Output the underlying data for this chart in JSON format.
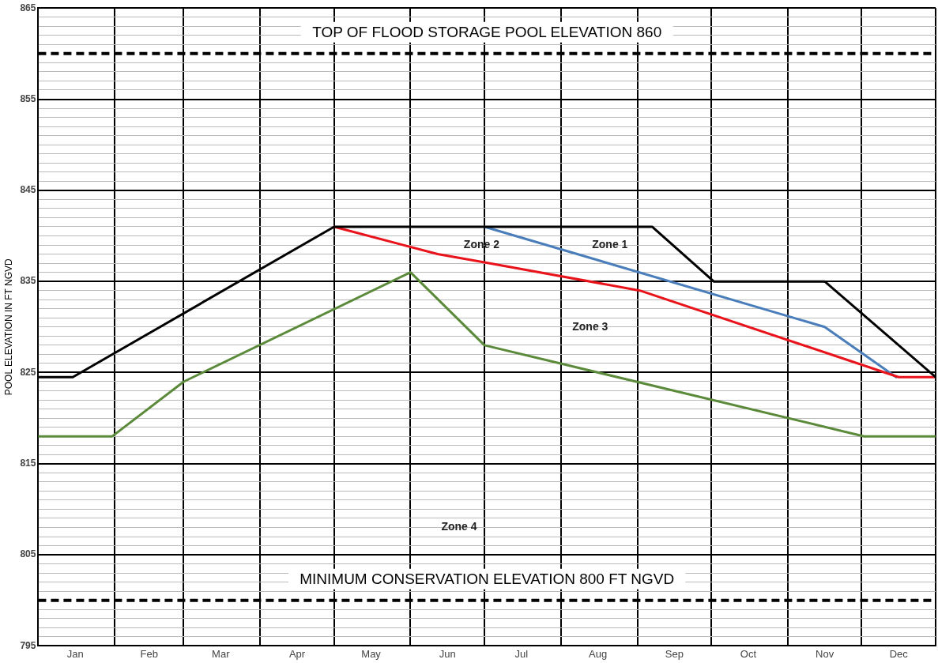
{
  "chart_data": {
    "type": "line",
    "ylabel": "POOL ELEVATION IN FT NGVD",
    "xlim": [
      "--01-01",
      "--12-31"
    ],
    "xticks": [
      {
        "value": "--01-01",
        "label": null
      },
      {
        "value": "--01-16",
        "label": "Jan"
      },
      {
        "value": "--02-01",
        "label": null
      },
      {
        "value": "--02-15",
        "label": "Feb"
      },
      {
        "value": "--03-01",
        "label": null
      },
      {
        "value": "--03-16",
        "label": "Mar"
      },
      {
        "value": "--04-01",
        "label": null
      },
      {
        "value": "--04-16",
        "label": "Apr"
      },
      {
        "value": "--05-01",
        "label": null
      },
      {
        "value": "--05-16",
        "label": "May"
      },
      {
        "value": "--06-01",
        "label": null
      },
      {
        "value": "--06-16",
        "label": "Jun"
      },
      {
        "value": "--07-01",
        "label": null
      },
      {
        "value": "--07-16",
        "label": "Jul"
      },
      {
        "value": "--08-01",
        "label": null
      },
      {
        "value": "--08-16",
        "label": "Aug"
      },
      {
        "value": "--09-01",
        "label": null
      },
      {
        "value": "--09-16",
        "label": "Sep"
      },
      {
        "value": "--10-01",
        "label": null
      },
      {
        "value": "--10-16",
        "label": "Oct"
      },
      {
        "value": "--11-01",
        "label": null
      },
      {
        "value": "--11-16",
        "label": "Nov"
      },
      {
        "value": "--12-01",
        "label": null
      },
      {
        "value": "--12-16",
        "label": "Dec"
      },
      {
        "value": "--12-31",
        "label": null
      }
    ],
    "ylim": [
      795,
      865
    ],
    "yticks": [
      795,
      {
        "value": 796,
        "label": null
      },
      {
        "value": 797,
        "label": null
      },
      {
        "value": 798,
        "label": null
      },
      {
        "value": 799,
        "label": null
      },
      {
        "value": 801,
        "label": null
      },
      {
        "value": 802,
        "label": null
      },
      {
        "value": 803,
        "label": null
      },
      {
        "value": 804,
        "label": null
      },
      805,
      {
        "value": 806,
        "label": null
      },
      {
        "value": 807,
        "label": null
      },
      {
        "value": 808,
        "label": null
      },
      {
        "value": 809,
        "label": null
      },
      {
        "value": 810,
        "label": null
      },
      {
        "value": 811,
        "label": null
      },
      {
        "value": 812,
        "label": null
      },
      {
        "value": 813,
        "label": null
      },
      {
        "value": 814,
        "label": null
      },
      815,
      {
        "value": 816,
        "label": null
      },
      {
        "value": 817,
        "label": null
      },
      {
        "value": 818,
        "label": null
      },
      {
        "value": 819,
        "label": null
      },
      {
        "value": 820,
        "label": null
      },
      {
        "value": 821,
        "label": null
      },
      {
        "value": 822,
        "label": null
      },
      {
        "value": 823,
        "label": null
      },
      {
        "value": 824,
        "label": null
      },
      825,
      {
        "value": 826,
        "label": null
      },
      {
        "value": 827,
        "label": null
      },
      {
        "value": 828,
        "label": null
      },
      {
        "value": 829,
        "label": null
      },
      {
        "value": 830,
        "label": null
      },
      {
        "value": 831,
        "label": null
      },
      {
        "value": 832,
        "label": null
      },
      {
        "value": 833,
        "label": null
      },
      {
        "value": 834,
        "label": null
      },
      835,
      {
        "value": 836,
        "label": null
      },
      {
        "value": 837,
        "label": null
      },
      {
        "value": 838,
        "label": null
      },
      {
        "value": 839,
        "label": null
      },
      {
        "value": 840,
        "label": null
      },
      {
        "value": 841,
        "label": null
      },
      {
        "value": 842,
        "label": null
      },
      {
        "value": 843,
        "label": null
      },
      {
        "value": 844,
        "label": null
      },
      845,
      {
        "value": 846,
        "label": null
      },
      {
        "value": 847,
        "label": null
      },
      {
        "value": 848,
        "label": null
      },
      {
        "value": 849,
        "label": null
      },
      {
        "value": 850,
        "label": null
      },
      {
        "value": 851,
        "label": null
      },
      {
        "value": 852,
        "label": null
      },
      {
        "value": 853,
        "label": null
      },
      {
        "value": 854,
        "label": null
      },
      855,
      {
        "value": 856,
        "label": null
      },
      {
        "value": 857,
        "label": null
      },
      {
        "value": 858,
        "label": null
      },
      {
        "value": 859,
        "label": null
      },
      {
        "value": 861,
        "label": null
      },
      {
        "value": 862,
        "label": null
      },
      {
        "value": 863,
        "label": null
      },
      {
        "value": 864,
        "label": null
      },
      865
    ],
    "grid": true,
    "legend": false,
    "marker": "none",
    "line_style": "solid",
    "series": [
      {
        "color": "#000000",
        "x": [
          "--01-01",
          "--01-15",
          "--05-01",
          "--09-07",
          "--10-02",
          "--11-16",
          "--12-31"
        ],
        "values": [
          824.5,
          824.5,
          841,
          841,
          835,
          835,
          824.5
        ]
      },
      {
        "color": "#e8131b",
        "x": [
          "--05-01",
          "--06-12",
          "--07-01",
          "--09-02",
          "--12-16",
          "--12-31"
        ],
        "values": [
          841,
          838,
          837.1,
          834,
          824.5,
          824.5
        ]
      },
      {
        "color": "#4a7ebb",
        "x": [
          "--07-01",
          "--11-16",
          "--12-15"
        ],
        "values": [
          841,
          830,
          824.5
        ]
      },
      {
        "color": "#5a8a3a",
        "x": [
          "--01-01",
          "--01-31",
          "--03-01",
          "--06-01",
          "--07-01",
          "--12-02",
          "--12-31"
        ],
        "values": [
          818,
          818,
          824,
          836,
          828,
          818,
          818
        ]
      }
    ],
    "ref_lines": [
      {
        "axis": "y",
        "value": 860,
        "label": "TOP OF FLOOD STORAGE POOL ELEVATION 860",
        "color": "#000000",
        "line_style": "dashed"
      },
      {
        "axis": "y",
        "value": 800,
        "label": "MINIMUM CONSERVATION ELEVATION 800 FT NGVD",
        "color": "#000000",
        "line_style": "dashed"
      }
    ],
    "annotations": [
      "Zone 1",
      "Zone 2",
      "Zone 3",
      "Zone 4"
    ]
  }
}
